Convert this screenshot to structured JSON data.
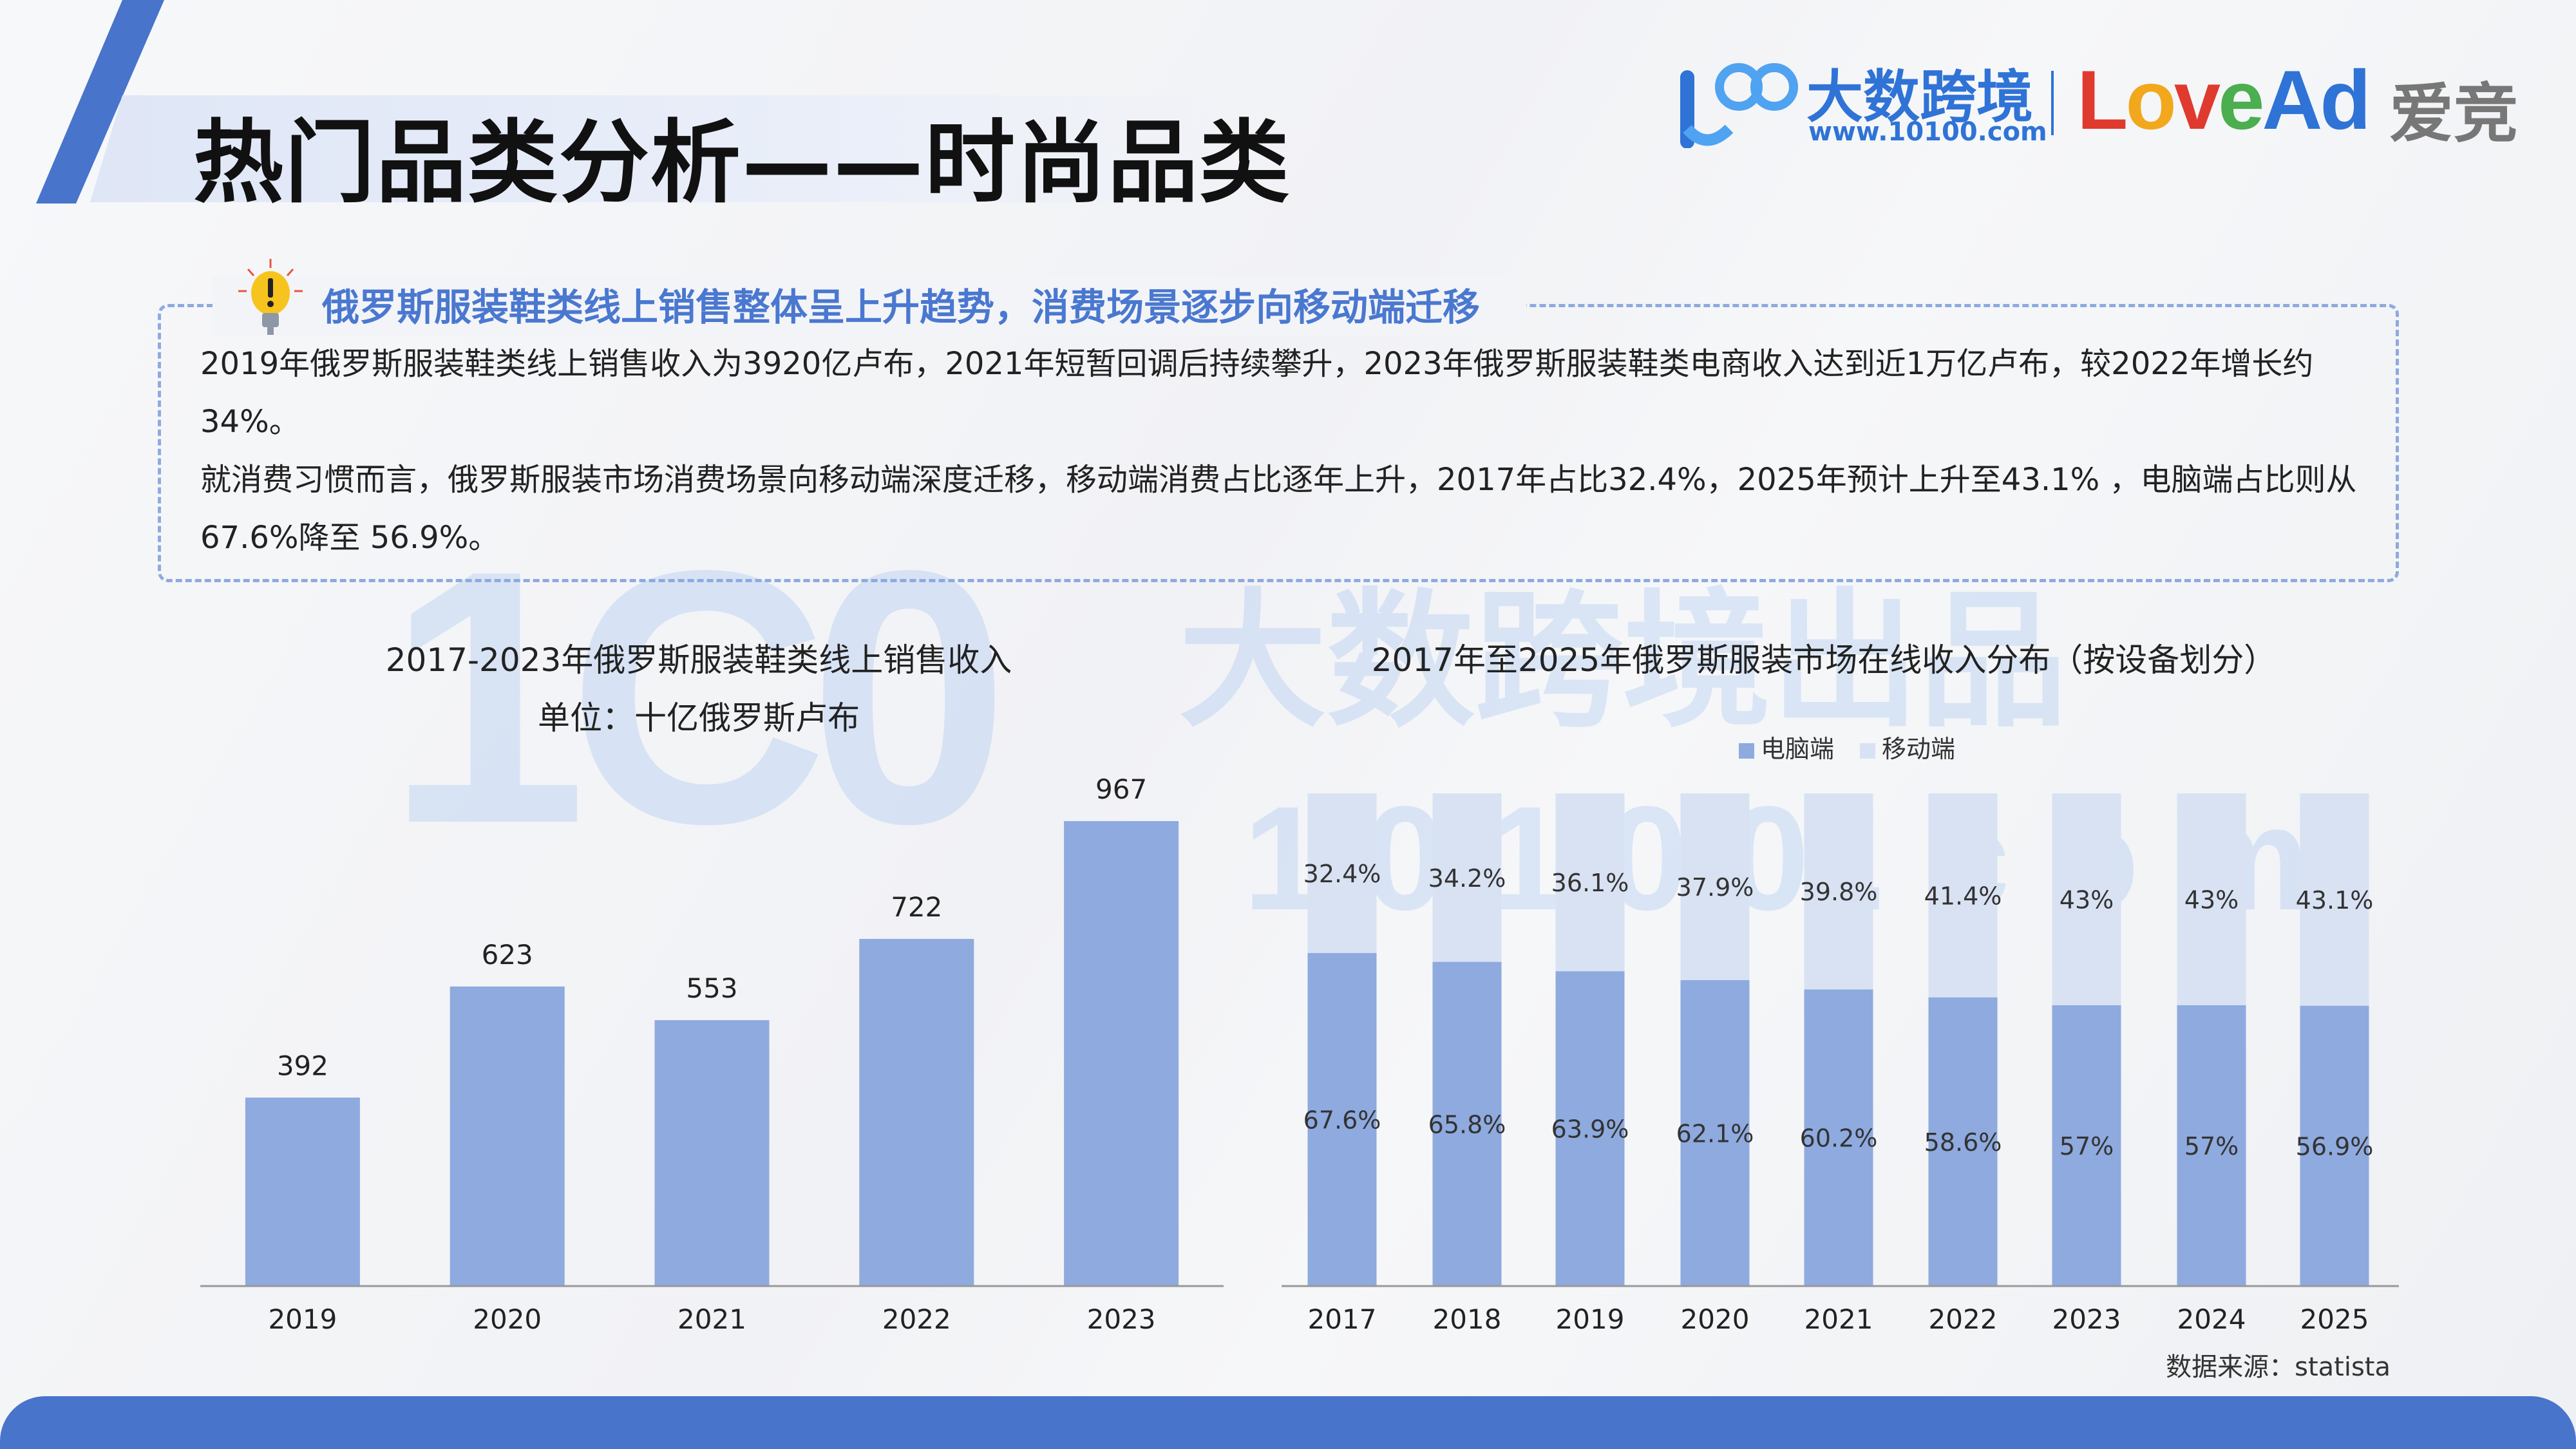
{
  "header": {
    "title": "热门品类分析——时尚品类",
    "logo_cn": "大数跨境",
    "logo_url": "www.10100.com",
    "logo_lovead": "LoveAd",
    "logo_aijing": "爱竞",
    "watermark_main": "1C0",
    "watermark_cn": "大数跨境出品",
    "watermark_url": "10100.com"
  },
  "summary": {
    "heading": "俄罗斯服装鞋类线上销售整体呈上升趋势，消费场景逐步向移动端迁移",
    "paragraph1": "2019年俄罗斯服装鞋类线上销售收入为3920亿卢布，2021年短暂回调后持续攀升，2023年俄罗斯服装鞋类电商收入达到近1万亿卢布，较2022年增长约34%。",
    "paragraph2": "就消费习惯而言，俄罗斯服装市场消费场景向移动端深度迁移，移动端消费占比逐年上升，2017年占比32.4%，2025年预计上升至43.1% ，电脑端占比则从67.6%降至 56.9%。"
  },
  "colors": {
    "accent": "#4874cb",
    "bar": "#8eaadf",
    "bar_light": "#d9e2f3",
    "heading": "#4a78d0"
  },
  "chart_data": [
    {
      "type": "bar",
      "title": "2017-2023年俄罗斯服装鞋类线上销售收入",
      "subtitle": "单位：十亿俄罗斯卢布",
      "categories": [
        "2019",
        "2020",
        "2021",
        "2022",
        "2023"
      ],
      "values": [
        392,
        623,
        553,
        722,
        967
      ],
      "ylim": [
        0,
        967
      ],
      "grid": false
    },
    {
      "type": "bar",
      "stacked": true,
      "title": "2017年至2025年俄罗斯服装市场在线收入分布（按设备划分）",
      "categories": [
        "2017",
        "2018",
        "2019",
        "2020",
        "2021",
        "2022",
        "2023",
        "2024",
        "2025"
      ],
      "series": [
        {
          "name": "电脑端",
          "values": [
            67.6,
            65.8,
            63.9,
            62.1,
            60.2,
            58.6,
            57,
            57,
            56.9
          ],
          "labels": [
            "67.6%",
            "65.8%",
            "63.9%",
            "62.1%",
            "60.2%",
            "58.6%",
            "57%",
            "57%",
            "56.9%"
          ]
        },
        {
          "name": "移动端",
          "values": [
            32.4,
            34.2,
            36.1,
            37.9,
            39.8,
            41.4,
            43,
            43,
            43.1
          ],
          "labels": [
            "32.4%",
            "34.2%",
            "36.1%",
            "37.9%",
            "39.8%",
            "41.4%",
            "43%",
            "43%",
            "43.1%"
          ]
        }
      ],
      "ylim": [
        0,
        100
      ],
      "legend": "top-center",
      "source": "数据来源：statista"
    }
  ]
}
